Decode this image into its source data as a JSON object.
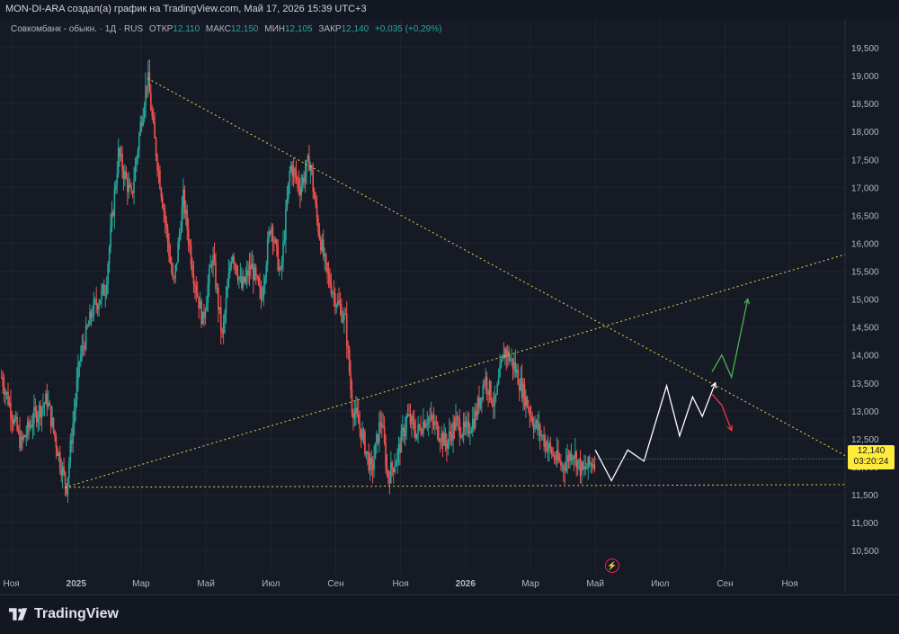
{
  "header": {
    "author_line": "MON-DI-ARA создал(а) график на TradingView.com, Май 17, 2026 15:39 UTC+3"
  },
  "legend": {
    "symbol": "Совкомбанк - обыкн. · 1Д · RUS",
    "open_label": "ОТКР",
    "open": "12,110",
    "high_label": "МАКС",
    "high": "12,150",
    "low_label": "МИН",
    "low": "12,105",
    "close_label": "ЗАКР",
    "close": "12,140",
    "change": "+0,035 (+0,29%)"
  },
  "price_tag": {
    "price": "12,140",
    "countdown": "03:20:24"
  },
  "footer": {
    "brand": "TradingView"
  },
  "colors": {
    "up": "#26a69a",
    "down": "#ef5350",
    "trend": "#e6d84a",
    "projection": "#ffffff",
    "bull": "#4caf50",
    "bear": "#f23645",
    "bg": "#161a25"
  },
  "chart_data": {
    "type": "candlestick",
    "y_ticks": [
      "19,500",
      "19,000",
      "18,500",
      "18,000",
      "17,500",
      "17,000",
      "16,500",
      "16,000",
      "15,500",
      "15,000",
      "14,500",
      "14,000",
      "13,500",
      "13,000",
      "12,500",
      "12,000",
      "11,500",
      "11,000",
      "10,500"
    ],
    "y_tick_values": [
      19.5,
      19.0,
      18.5,
      18.0,
      17.5,
      17.0,
      16.5,
      16.0,
      15.5,
      15.0,
      14.5,
      14.0,
      13.5,
      13.0,
      12.5,
      12.0,
      11.5,
      11.0,
      10.5
    ],
    "ylim": [
      10.1,
      20.0
    ],
    "x_ticks": [
      "Ноя",
      "2025",
      "Мар",
      "Май",
      "Июл",
      "Сен",
      "Ноя",
      "2026",
      "Мар",
      "Май",
      "Июл",
      "Сен",
      "Ноя"
    ],
    "x_tick_months": [
      0,
      2,
      4,
      6,
      8,
      10,
      12,
      14,
      16,
      18,
      20,
      22,
      24
    ],
    "x_range_months": [
      -0.35,
      25.7
    ],
    "price_path": [
      [
        -0.3,
        13.6
      ],
      [
        0.3,
        12.4
      ],
      [
        0.7,
        12.9
      ],
      [
        1.1,
        13.2
      ],
      [
        1.5,
        12.1
      ],
      [
        1.7,
        11.65
      ],
      [
        2.1,
        13.9
      ],
      [
        2.5,
        14.8
      ],
      [
        2.9,
        15.2
      ],
      [
        3.3,
        17.6
      ],
      [
        3.7,
        16.8
      ],
      [
        4.0,
        18.2
      ],
      [
        4.2,
        19.0
      ],
      [
        4.4,
        17.9
      ],
      [
        4.7,
        16.6
      ],
      [
        5.0,
        15.2
      ],
      [
        5.3,
        16.8
      ],
      [
        5.6,
        15.5
      ],
      [
        5.9,
        14.6
      ],
      [
        6.2,
        15.8
      ],
      [
        6.5,
        14.3
      ],
      [
        6.8,
        15.9
      ],
      [
        7.1,
        15.2
      ],
      [
        7.4,
        15.6
      ],
      [
        7.7,
        15.0
      ],
      [
        8.0,
        16.4
      ],
      [
        8.3,
        15.4
      ],
      [
        8.6,
        17.4
      ],
      [
        8.9,
        17.0
      ],
      [
        9.2,
        17.5
      ],
      [
        9.4,
        16.5
      ],
      [
        9.7,
        15.5
      ],
      [
        10.0,
        15.0
      ],
      [
        10.3,
        14.6
      ],
      [
        10.5,
        13.1
      ],
      [
        10.8,
        12.6
      ],
      [
        11.1,
        11.9
      ],
      [
        11.4,
        12.9
      ],
      [
        11.6,
        11.8
      ],
      [
        11.9,
        12.2
      ],
      [
        12.2,
        12.9
      ],
      [
        12.5,
        12.6
      ],
      [
        12.8,
        12.9
      ],
      [
        13.1,
        12.7
      ],
      [
        13.4,
        12.4
      ],
      [
        13.7,
        12.8
      ],
      [
        14.0,
        12.6
      ],
      [
        14.3,
        12.9
      ],
      [
        14.6,
        13.6
      ],
      [
        14.9,
        13.1
      ],
      [
        15.2,
        14.1
      ],
      [
        15.5,
        13.8
      ],
      [
        15.8,
        13.3
      ],
      [
        16.1,
        12.8
      ],
      [
        16.4,
        12.5
      ],
      [
        16.7,
        12.2
      ],
      [
        17.0,
        12.0
      ],
      [
        17.3,
        12.3
      ],
      [
        17.6,
        11.9
      ],
      [
        18.0,
        12.14
      ]
    ],
    "trendlines": [
      {
        "name": "descending-resistance",
        "from": [
          4.2,
          18.95
        ],
        "to": [
          25.7,
          12.2
        ]
      },
      {
        "name": "ascending-support",
        "from": [
          1.65,
          11.63
        ],
        "to": [
          25.7,
          15.8
        ]
      },
      {
        "name": "horizontal-support",
        "from": [
          1.65,
          11.63
        ],
        "to": [
          25.7,
          11.68
        ]
      }
    ],
    "projection_main": [
      [
        18.0,
        12.3
      ],
      [
        18.5,
        11.75
      ],
      [
        19.0,
        12.3
      ],
      [
        19.5,
        12.1
      ],
      [
        20.2,
        13.45
      ],
      [
        20.6,
        12.55
      ],
      [
        21.0,
        13.25
      ],
      [
        21.3,
        12.9
      ],
      [
        21.7,
        13.5
      ]
    ],
    "projection_bull": [
      [
        21.6,
        13.7
      ],
      [
        21.9,
        14.0
      ],
      [
        22.2,
        13.6
      ],
      [
        22.7,
        15.0
      ]
    ],
    "projection_bear": [
      [
        21.6,
        13.3
      ],
      [
        21.9,
        13.1
      ],
      [
        22.2,
        12.65
      ]
    ]
  }
}
